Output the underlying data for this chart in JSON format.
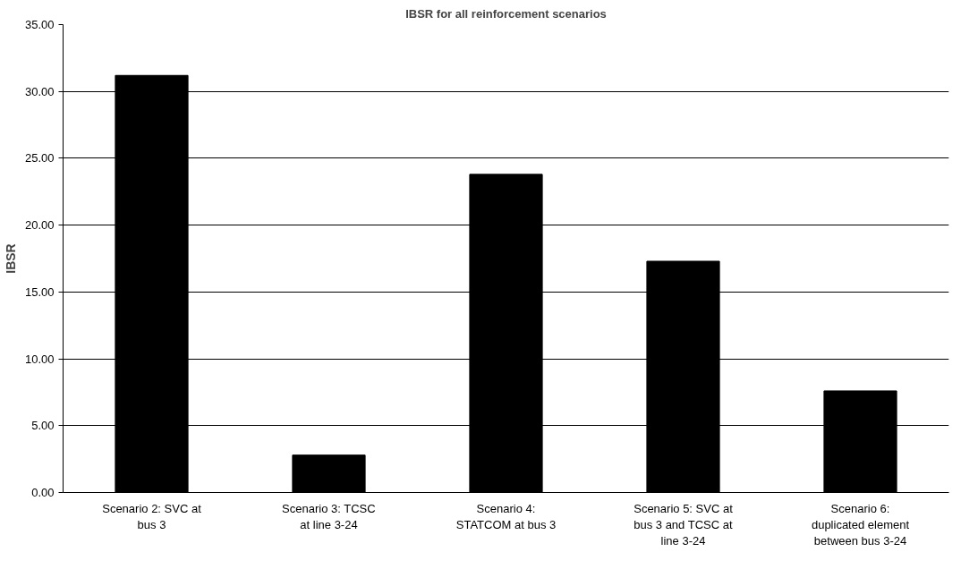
{
  "chart_data": {
    "type": "bar",
    "title": "IBSR for all reinforcement scenarios",
    "ylabel": "IBSR",
    "categories": [
      "Scenario 2: SVC at bus 3",
      "Scenario 3: TCSC at line 3-24",
      "Scenario 4: STATCOM at bus 3",
      "Scenario 5: SVC at bus 3 and TCSC at line 3-24",
      "Scenario 6: duplicated element between bus 3-24"
    ],
    "values": [
      31.2,
      2.8,
      23.8,
      17.3,
      7.6
    ],
    "color": "#000000",
    "ylim": [
      0,
      35
    ],
    "yticks": [
      {
        "value": 0,
        "label": "0.00"
      },
      {
        "value": 5,
        "label": "5.00"
      },
      {
        "value": 10,
        "label": "10.00"
      },
      {
        "value": 15,
        "label": "15.00"
      },
      {
        "value": 20,
        "label": "20.00"
      },
      {
        "value": 25,
        "label": "25.00"
      },
      {
        "value": 30,
        "label": "30.00"
      },
      {
        "value": 35,
        "label": "35.00"
      }
    ],
    "grid": "y"
  }
}
